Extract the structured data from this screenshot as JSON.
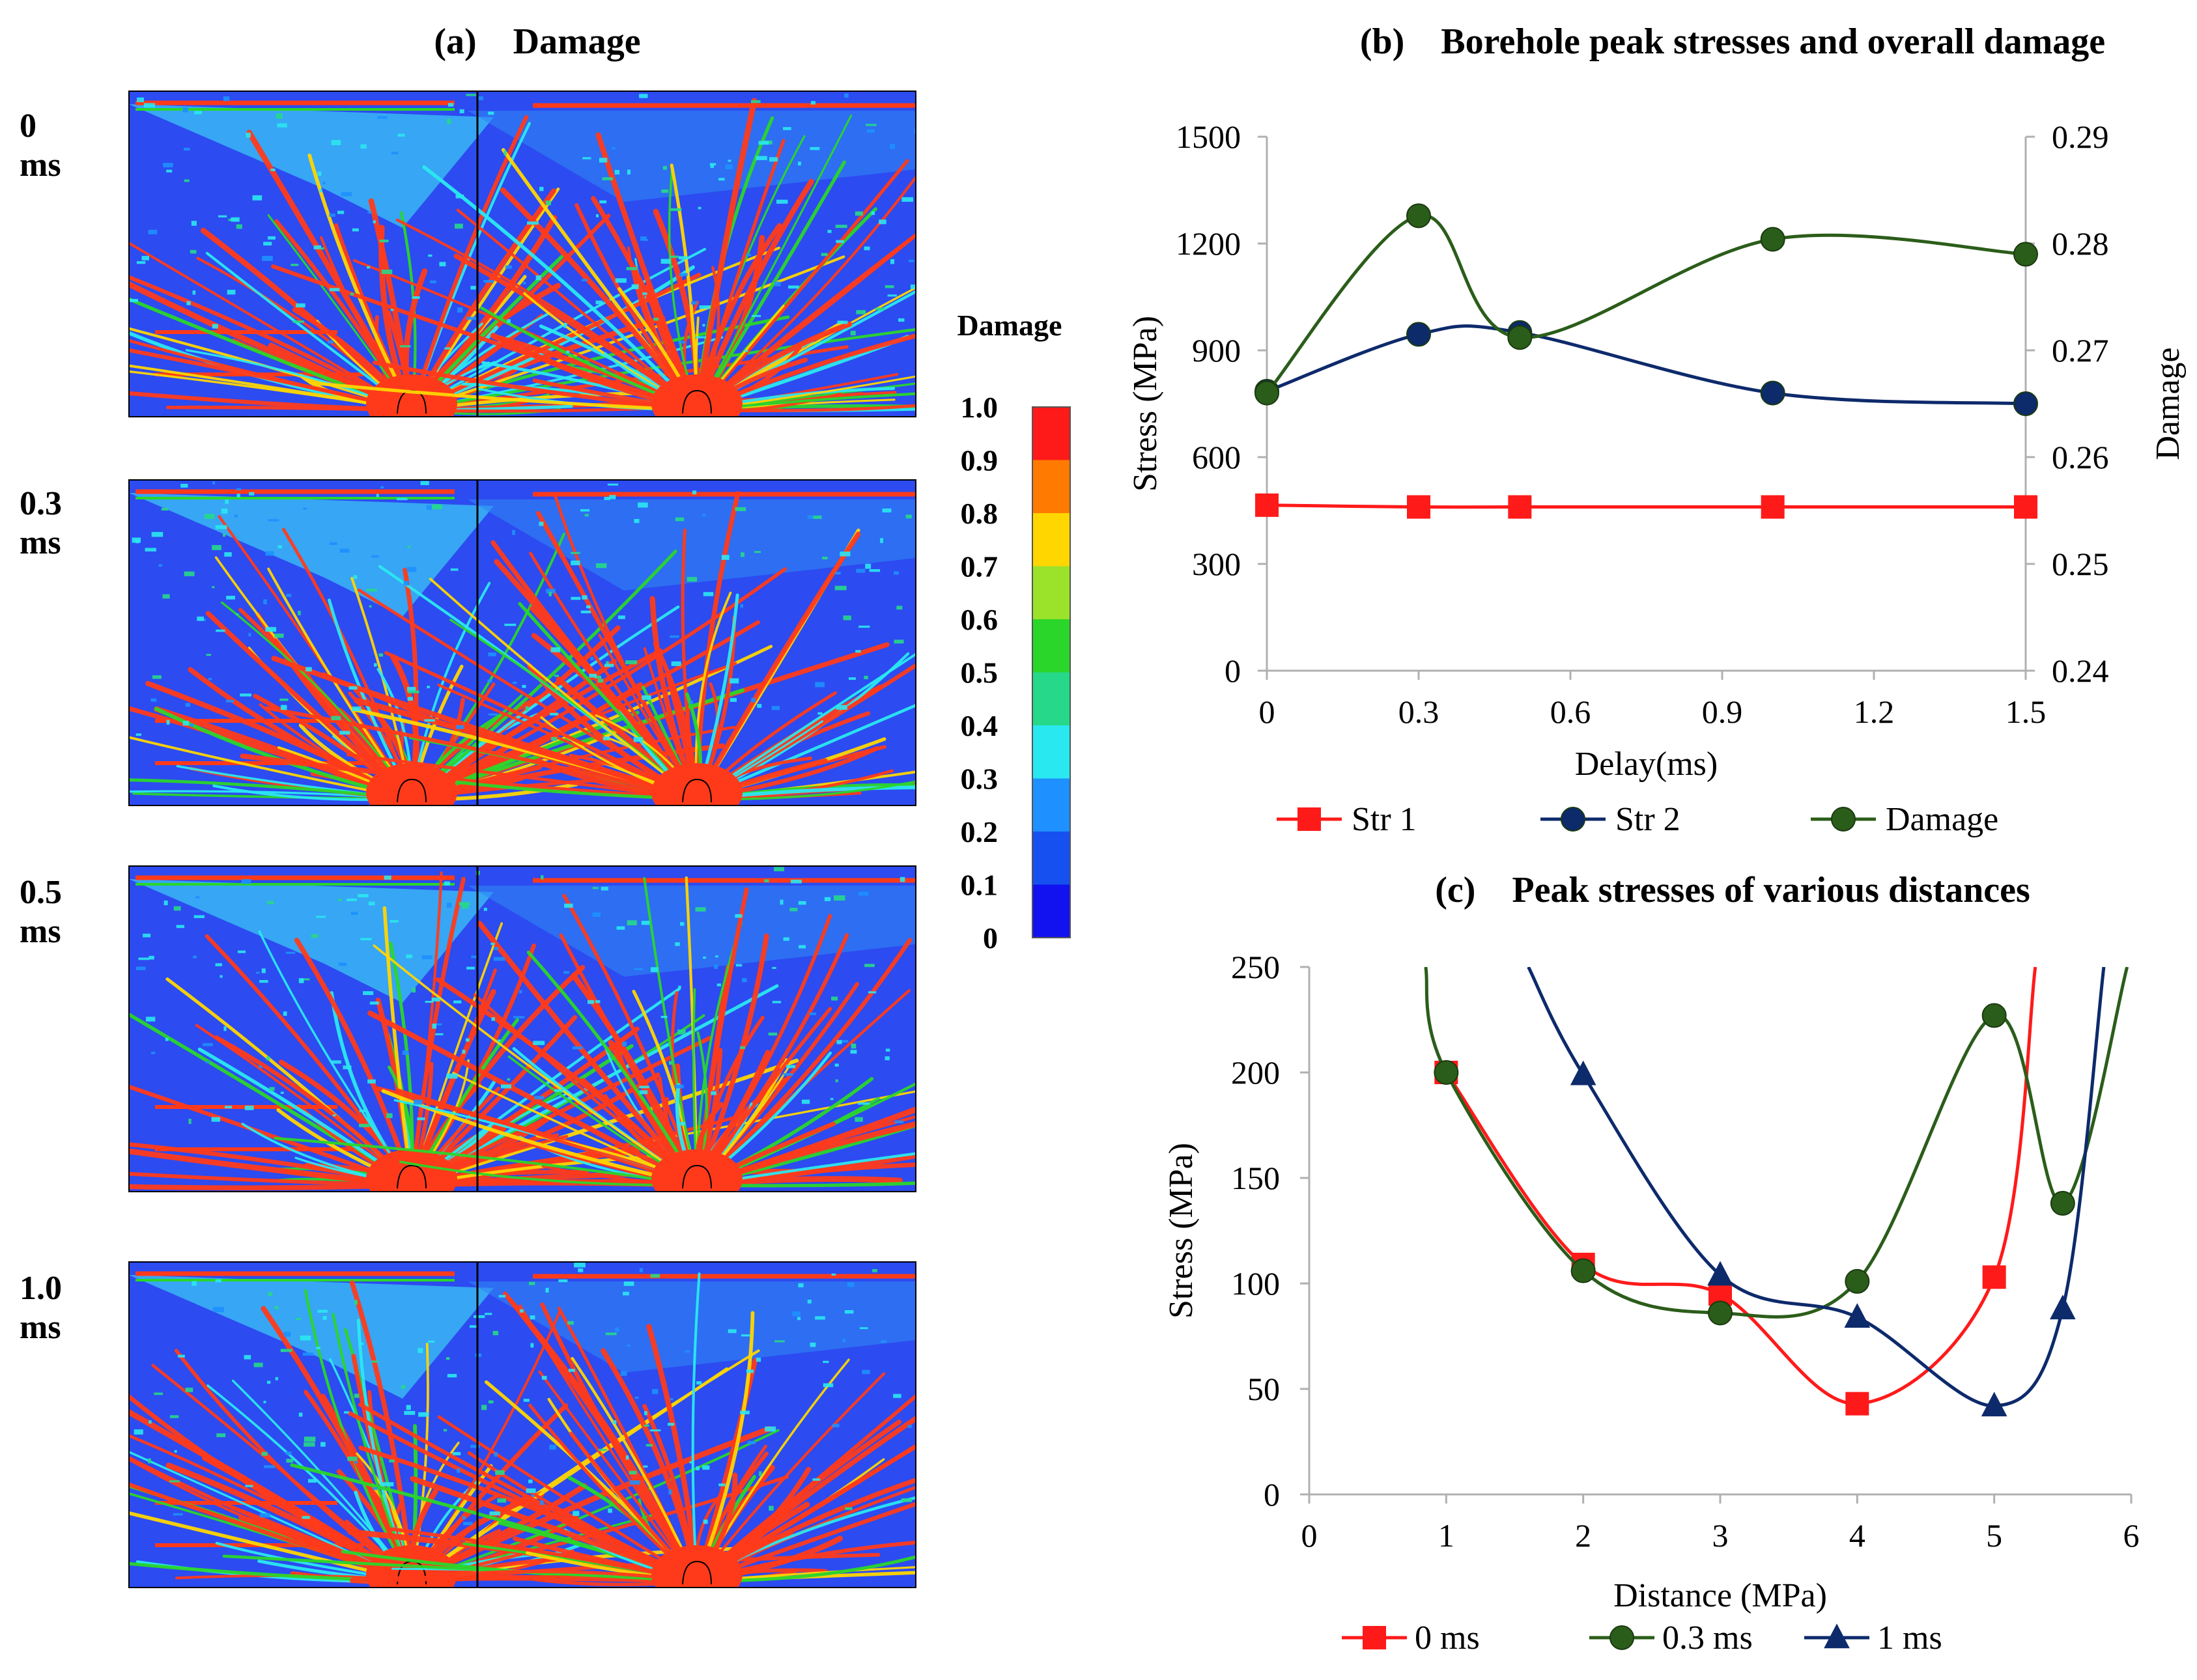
{
  "panel_a": {
    "title": "(a) Damage",
    "rows": [
      {
        "line1": "0",
        "line2": "ms"
      },
      {
        "line1": "0.3",
        "line2": "ms"
      },
      {
        "line1": "0.5",
        "line2": "ms"
      },
      {
        "line1": "1.0",
        "line2": "ms"
      }
    ],
    "colorbar": {
      "title": "Damage",
      "labels": [
        "1.0",
        "0.9",
        "0.8",
        "0.7",
        "0.6",
        "0.5",
        "0.4",
        "0.3",
        "0.2",
        "0.1",
        "0"
      ],
      "colors": [
        "#ff1a1a",
        "#ff7a00",
        "#ffd600",
        "#9be22a",
        "#2ad62a",
        "#26d98a",
        "#2ae8f0",
        "#1e90ff",
        "#1650f0",
        "#1212f0"
      ],
      "field_color": "#2c4bf0",
      "crack_color": "#ff3a1a"
    }
  },
  "chart_data": [
    {
      "type": "line",
      "title": "(b) Borehole peak stresses and overall damage",
      "xlabel": "Delay(ms)",
      "ylabel": "Stress (MPa)",
      "y2label": "Damage",
      "xlim": [
        0,
        1.5
      ],
      "ylim": [
        0,
        1500
      ],
      "y2lim": [
        0.24,
        0.29
      ],
      "xticks": [
        "0",
        "0.3",
        "0.6",
        "0.9",
        "1.2",
        "1.5"
      ],
      "yticks": [
        "0",
        "300",
        "600",
        "900",
        "1200",
        "1500"
      ],
      "y2ticks": [
        "0.24",
        "0.25",
        "0.26",
        "0.27",
        "0.28",
        "0.29"
      ],
      "grid": false,
      "legend": "bottom",
      "series": [
        {
          "name": "Str 1",
          "axis": "left",
          "color": "#ff1a1a",
          "marker": "square",
          "x": [
            0,
            0.3,
            0.5,
            1.0,
            1.5
          ],
          "values": [
            465,
            460,
            460,
            460,
            460
          ]
        },
        {
          "name": "Str 2",
          "axis": "left",
          "color": "#0d2a6b",
          "marker": "circle",
          "x": [
            0,
            0.3,
            0.5,
            1.0,
            1.5
          ],
          "values": [
            785,
            945,
            950,
            780,
            750
          ]
        },
        {
          "name": "Damage",
          "axis": "right",
          "color": "#2b5d1a",
          "marker": "circle",
          "x": [
            0,
            0.3,
            0.5,
            1.0,
            1.5
          ],
          "values": [
            0.266,
            0.2826,
            0.2712,
            0.2804,
            0.279
          ]
        }
      ]
    },
    {
      "type": "line",
      "title": "(c) Peak stresses of various distances",
      "xlabel": "Distance (MPa)",
      "ylabel": "Stress (MPa)",
      "xlim": [
        0,
        6
      ],
      "ylim": [
        0,
        250
      ],
      "xticks": [
        "0",
        "1",
        "2",
        "3",
        "4",
        "5",
        "6"
      ],
      "yticks": [
        "0",
        "50",
        "100",
        "150",
        "200",
        "250"
      ],
      "grid": false,
      "legend": "bottom",
      "series": [
        {
          "name": "0 ms",
          "color": "#ff1a1a",
          "marker": "square",
          "x": [
            1,
            2,
            3,
            4,
            5
          ],
          "values": [
            200,
            109,
            95,
            43,
            103
          ],
          "tail": [
            5.3,
            250
          ]
        },
        {
          "name": "0.3 ms",
          "color": "#2b5d1a",
          "marker": "circle",
          "x": [
            1,
            2,
            3,
            4,
            5,
            5.5
          ],
          "values": [
            200,
            106,
            86,
            101,
            227,
            138
          ],
          "head": [
            0.85,
            250
          ],
          "tail": [
            5.97,
            250
          ]
        },
        {
          "name": "1 ms",
          "color": "#0d2a6b",
          "marker": "triangle",
          "x": [
            2,
            3,
            4,
            5,
            5.5
          ],
          "values": [
            199,
            104,
            84,
            42,
            88
          ],
          "head": [
            1.6,
            250
          ],
          "tail": [
            5.8,
            250
          ]
        }
      ]
    }
  ]
}
